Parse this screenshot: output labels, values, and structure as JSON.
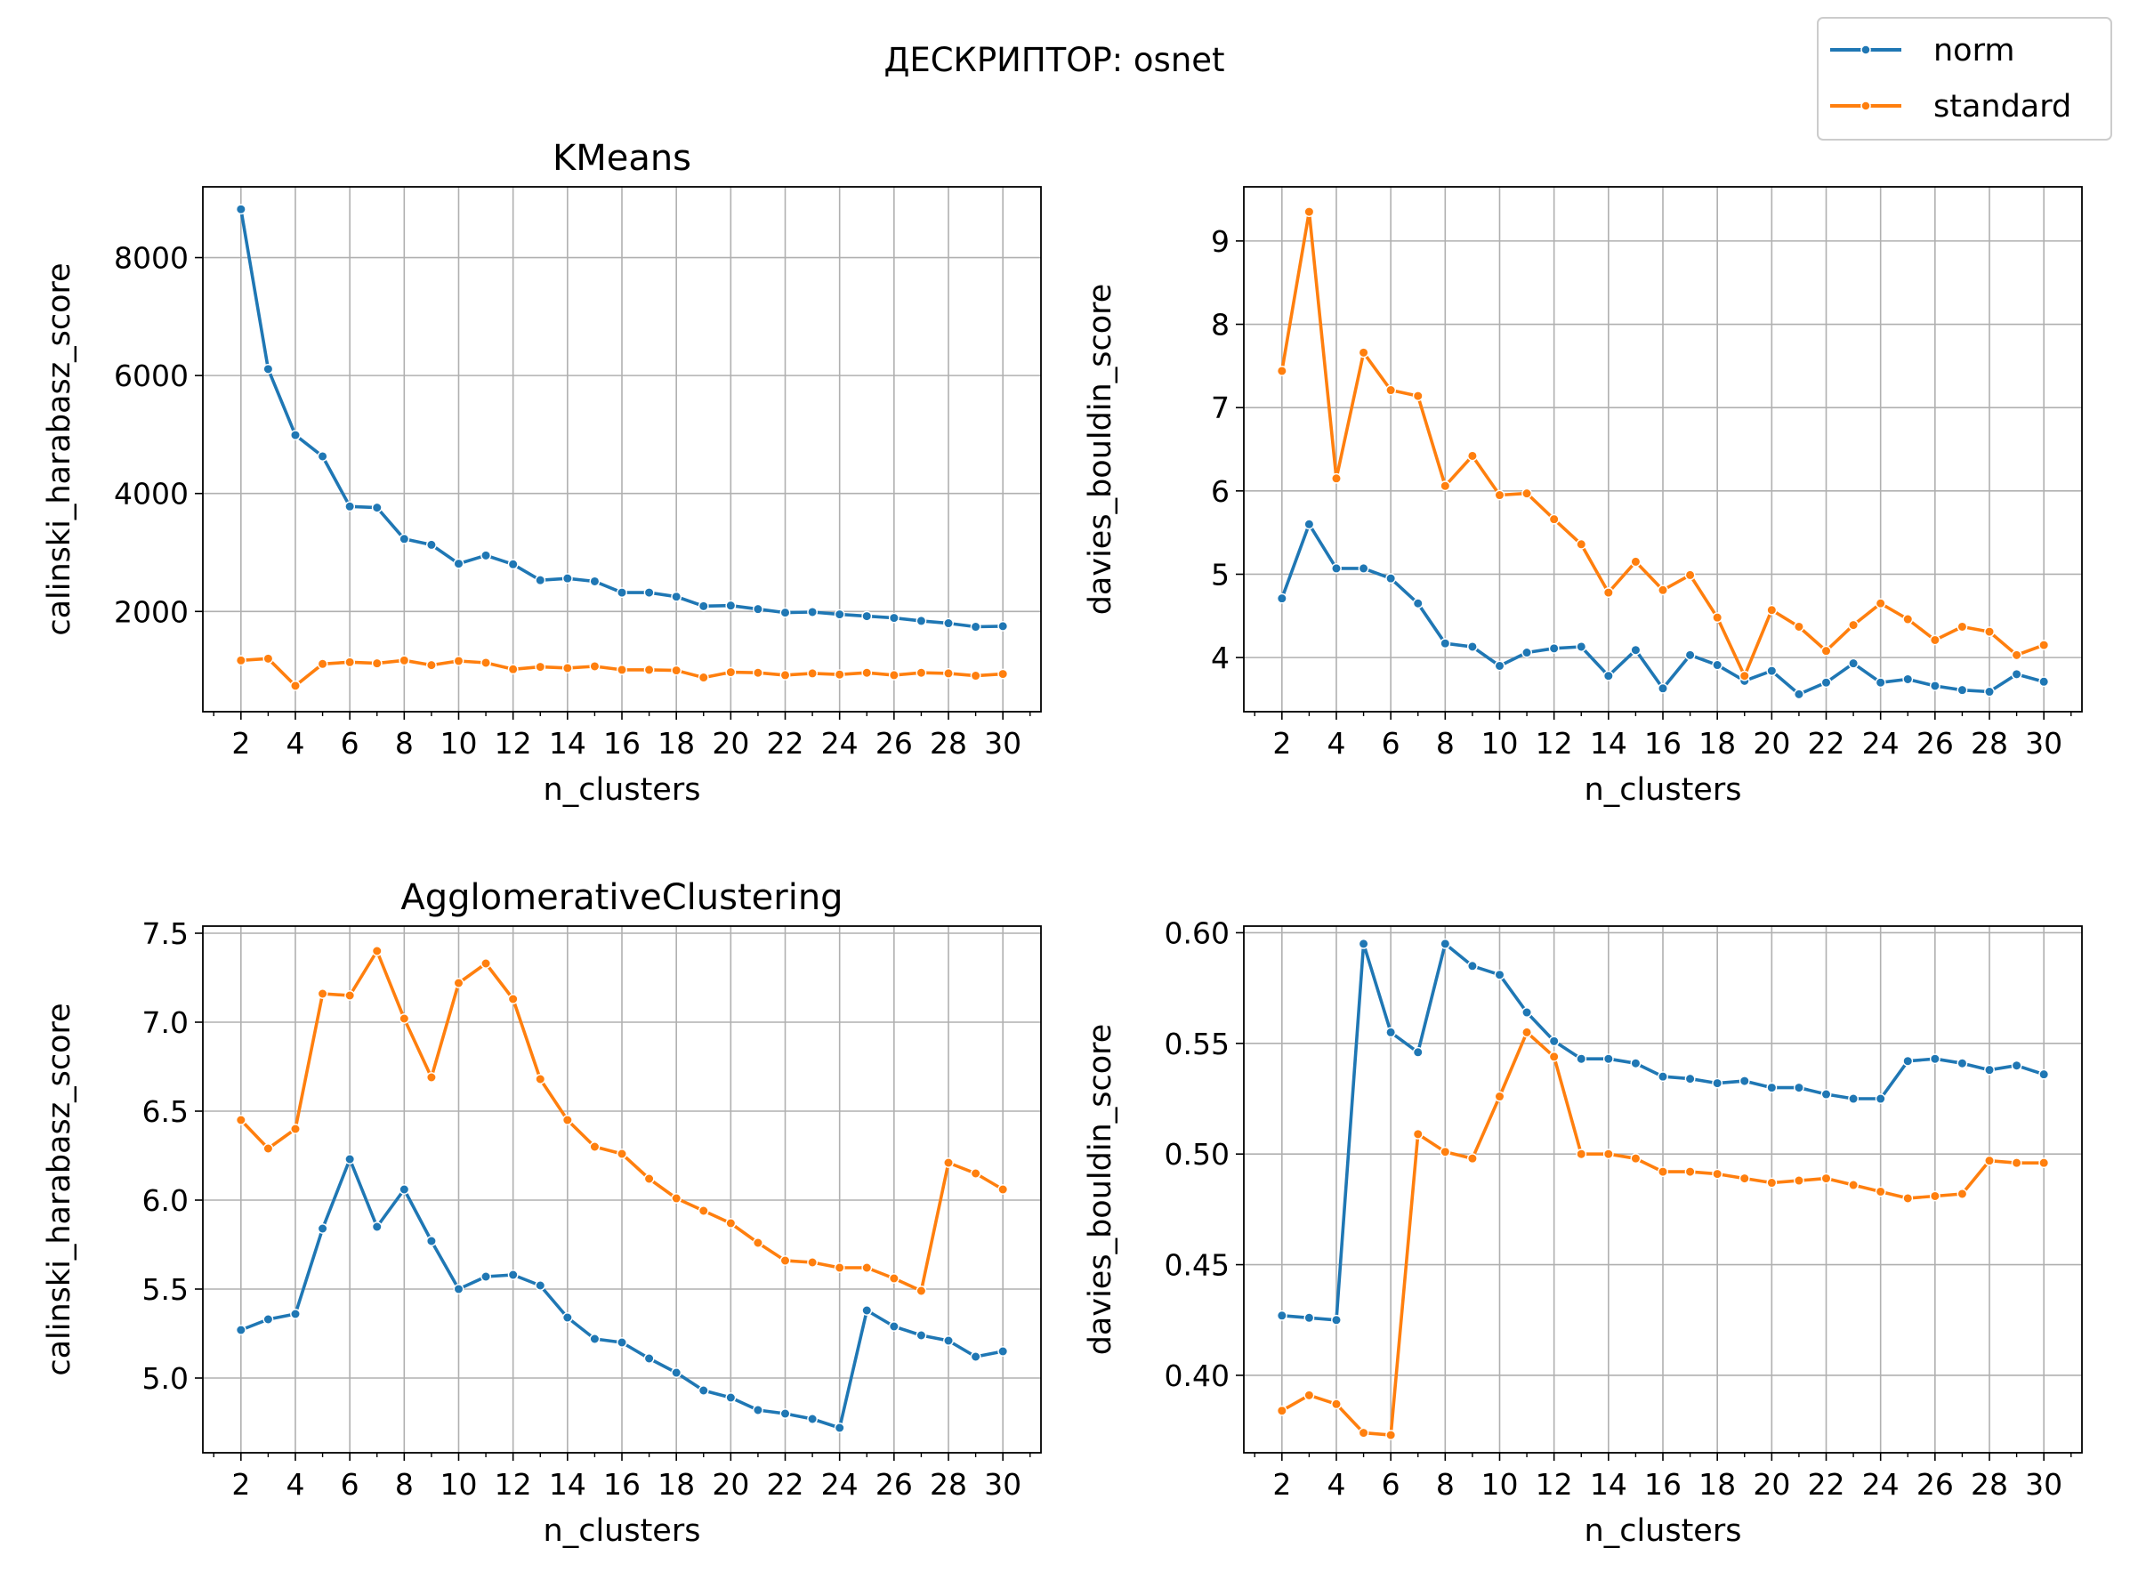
{
  "suptitle": "ДЕСКРИПТОР: osnet",
  "legend": {
    "placement": "top-right",
    "entries": [
      {
        "label": "norm",
        "color": "#1f77b4"
      },
      {
        "label": "standard",
        "color": "#ff7f0e"
      }
    ]
  },
  "chart_data": [
    {
      "type": "line",
      "title": "KMeans",
      "xlabel": "n_clusters",
      "ylabel": "calinski_harabasz_score",
      "xlim": [
        0.6,
        31.4
      ],
      "ylim": [
        300,
        9200
      ],
      "xticks": [
        2,
        4,
        6,
        8,
        10,
        12,
        14,
        16,
        18,
        20,
        22,
        24,
        26,
        28,
        30
      ],
      "yticks": [
        2000,
        4000,
        6000,
        8000
      ],
      "ytick_labels": [
        "2000",
        "4000",
        "6000",
        "8000"
      ],
      "grid": true,
      "x": [
        2,
        3,
        4,
        5,
        6,
        7,
        8,
        9,
        10,
        11,
        12,
        13,
        14,
        15,
        16,
        17,
        18,
        19,
        20,
        21,
        22,
        23,
        24,
        25,
        26,
        27,
        28,
        29,
        30
      ],
      "series": [
        {
          "name": "norm",
          "color": "#1f77b4",
          "values": [
            8820,
            6110,
            4990,
            4630,
            3780,
            3760,
            3230,
            3130,
            2810,
            2950,
            2800,
            2530,
            2560,
            2510,
            2320,
            2320,
            2250,
            2090,
            2100,
            2040,
            1980,
            1990,
            1950,
            1920,
            1890,
            1840,
            1800,
            1740,
            1750
          ]
        },
        {
          "name": "standard",
          "color": "#ff7f0e",
          "values": [
            1170,
            1200,
            740,
            1110,
            1140,
            1120,
            1170,
            1090,
            1160,
            1130,
            1020,
            1060,
            1040,
            1070,
            1010,
            1010,
            1000,
            880,
            970,
            960,
            920,
            950,
            930,
            960,
            920,
            960,
            950,
            910,
            940
          ]
        }
      ]
    },
    {
      "type": "line",
      "title": "",
      "xlabel": "n_clusters",
      "ylabel": "davies_bouldin_score",
      "xlim": [
        0.6,
        31.4
      ],
      "ylim": [
        3.35,
        9.65
      ],
      "xticks": [
        2,
        4,
        6,
        8,
        10,
        12,
        14,
        16,
        18,
        20,
        22,
        24,
        26,
        28,
        30
      ],
      "yticks": [
        4,
        5,
        6,
        7,
        8,
        9
      ],
      "ytick_labels": [
        "4",
        "5",
        "6",
        "7",
        "8",
        "9"
      ],
      "grid": true,
      "x": [
        2,
        3,
        4,
        5,
        6,
        7,
        8,
        9,
        10,
        11,
        12,
        13,
        14,
        15,
        16,
        17,
        18,
        19,
        20,
        21,
        22,
        23,
        24,
        25,
        26,
        27,
        28,
        29,
        30
      ],
      "series": [
        {
          "name": "norm",
          "color": "#1f77b4",
          "values": [
            4.71,
            5.6,
            5.07,
            5.07,
            4.95,
            4.65,
            4.17,
            4.13,
            3.9,
            4.06,
            4.11,
            4.13,
            3.78,
            4.09,
            3.63,
            4.03,
            3.91,
            3.72,
            3.84,
            3.56,
            3.7,
            3.93,
            3.7,
            3.74,
            3.66,
            3.61,
            3.59,
            3.8,
            3.71
          ]
        },
        {
          "name": "standard",
          "color": "#ff7f0e",
          "values": [
            7.44,
            9.35,
            6.15,
            7.66,
            7.21,
            7.14,
            6.06,
            6.42,
            5.95,
            5.97,
            5.66,
            5.36,
            4.78,
            5.15,
            4.81,
            4.99,
            4.48,
            3.78,
            4.57,
            4.37,
            4.08,
            4.39,
            4.65,
            4.46,
            4.21,
            4.37,
            4.31,
            4.03,
            4.15
          ]
        }
      ]
    },
    {
      "type": "line",
      "title": "AgglomerativeClustering",
      "xlabel": "n_clusters",
      "ylabel": "calinski_harabasz_score",
      "xlim": [
        0.6,
        31.4
      ],
      "ylim": [
        4.58,
        7.54
      ],
      "xticks": [
        2,
        4,
        6,
        8,
        10,
        12,
        14,
        16,
        18,
        20,
        22,
        24,
        26,
        28,
        30
      ],
      "yticks": [
        5.0,
        5.5,
        6.0,
        6.5,
        7.0,
        7.5
      ],
      "ytick_labels": [
        "5.0",
        "5.5",
        "6.0",
        "6.5",
        "7.0",
        "7.5"
      ],
      "grid": true,
      "x": [
        2,
        3,
        4,
        5,
        6,
        7,
        8,
        9,
        10,
        11,
        12,
        13,
        14,
        15,
        16,
        17,
        18,
        19,
        20,
        21,
        22,
        23,
        24,
        25,
        26,
        27,
        28,
        29,
        30
      ],
      "series": [
        {
          "name": "norm",
          "color": "#1f77b4",
          "values": [
            5.27,
            5.33,
            5.36,
            5.84,
            6.23,
            5.85,
            6.06,
            5.77,
            5.5,
            5.57,
            5.58,
            5.52,
            5.34,
            5.22,
            5.2,
            5.11,
            5.03,
            4.93,
            4.89,
            4.82,
            4.8,
            4.77,
            4.72,
            5.38,
            5.29,
            5.24,
            5.21,
            5.12,
            5.15
          ]
        },
        {
          "name": "standard",
          "color": "#ff7f0e",
          "values": [
            6.45,
            6.29,
            6.4,
            7.16,
            7.15,
            7.4,
            7.02,
            6.69,
            7.22,
            7.33,
            7.13,
            6.68,
            6.45,
            6.3,
            6.26,
            6.12,
            6.01,
            5.94,
            5.87,
            5.76,
            5.66,
            5.65,
            5.62,
            5.62,
            5.56,
            5.49,
            6.21,
            6.15,
            6.06
          ]
        }
      ]
    },
    {
      "type": "line",
      "title": "",
      "xlabel": "n_clusters",
      "ylabel": "davies_bouldin_score",
      "xlim": [
        0.6,
        31.4
      ],
      "ylim": [
        0.365,
        0.603
      ],
      "xticks": [
        2,
        4,
        6,
        8,
        10,
        12,
        14,
        16,
        18,
        20,
        22,
        24,
        26,
        28,
        30
      ],
      "yticks": [
        0.4,
        0.45,
        0.5,
        0.55,
        0.6
      ],
      "ytick_labels": [
        "0.40",
        "0.45",
        "0.50",
        "0.55",
        "0.60"
      ],
      "grid": true,
      "x": [
        2,
        3,
        4,
        5,
        6,
        7,
        8,
        9,
        10,
        11,
        12,
        13,
        14,
        15,
        16,
        17,
        18,
        19,
        20,
        21,
        22,
        23,
        24,
        25,
        26,
        27,
        28,
        29,
        30
      ],
      "series": [
        {
          "name": "norm",
          "color": "#1f77b4",
          "values": [
            0.427,
            0.426,
            0.425,
            0.595,
            0.555,
            0.546,
            0.595,
            0.585,
            0.581,
            0.564,
            0.551,
            0.543,
            0.543,
            0.541,
            0.535,
            0.534,
            0.532,
            0.533,
            0.53,
            0.53,
            0.527,
            0.525,
            0.525,
            0.542,
            0.543,
            0.541,
            0.538,
            0.54,
            0.536
          ]
        },
        {
          "name": "standard",
          "color": "#ff7f0e",
          "values": [
            0.384,
            0.391,
            0.387,
            0.374,
            0.373,
            0.509,
            0.501,
            0.498,
            0.526,
            0.555,
            0.544,
            0.5,
            0.5,
            0.498,
            0.492,
            0.492,
            0.491,
            0.489,
            0.487,
            0.488,
            0.489,
            0.486,
            0.483,
            0.48,
            0.481,
            0.482,
            0.497,
            0.496,
            0.496
          ]
        }
      ]
    }
  ]
}
